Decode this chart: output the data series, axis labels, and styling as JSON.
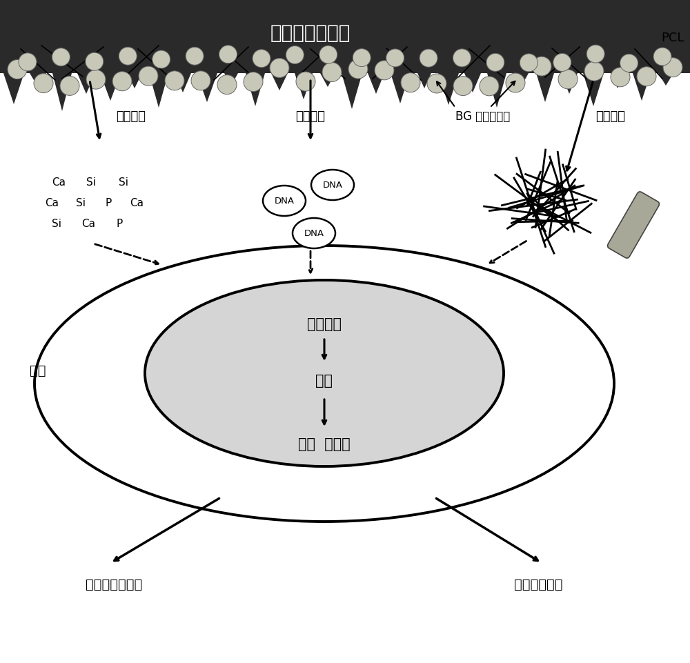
{
  "title": "骨修复材料支架",
  "pcl_label": "PCL",
  "bg_label": "BG 微纳米纤维",
  "surface_label": "表面形貌",
  "ion_label": "离子溶解",
  "plasmid_label": "质粒载体",
  "cell_label": "细胞",
  "gene_label": "基因表达",
  "transcription_label": "转录",
  "translation_label": "翻译  后转译",
  "output1": "细胞外基质形成",
  "output2": "血管生成因子",
  "scaffold_color": "#2a2a2a",
  "nucleus_color": "#d5d5d5",
  "ion_rows": [
    [
      "Ca",
      "Si",
      "Si"
    ],
    [
      "Ca",
      "Si",
      "P",
      "Ca"
    ],
    [
      "Si",
      "Ca",
      "P"
    ]
  ]
}
